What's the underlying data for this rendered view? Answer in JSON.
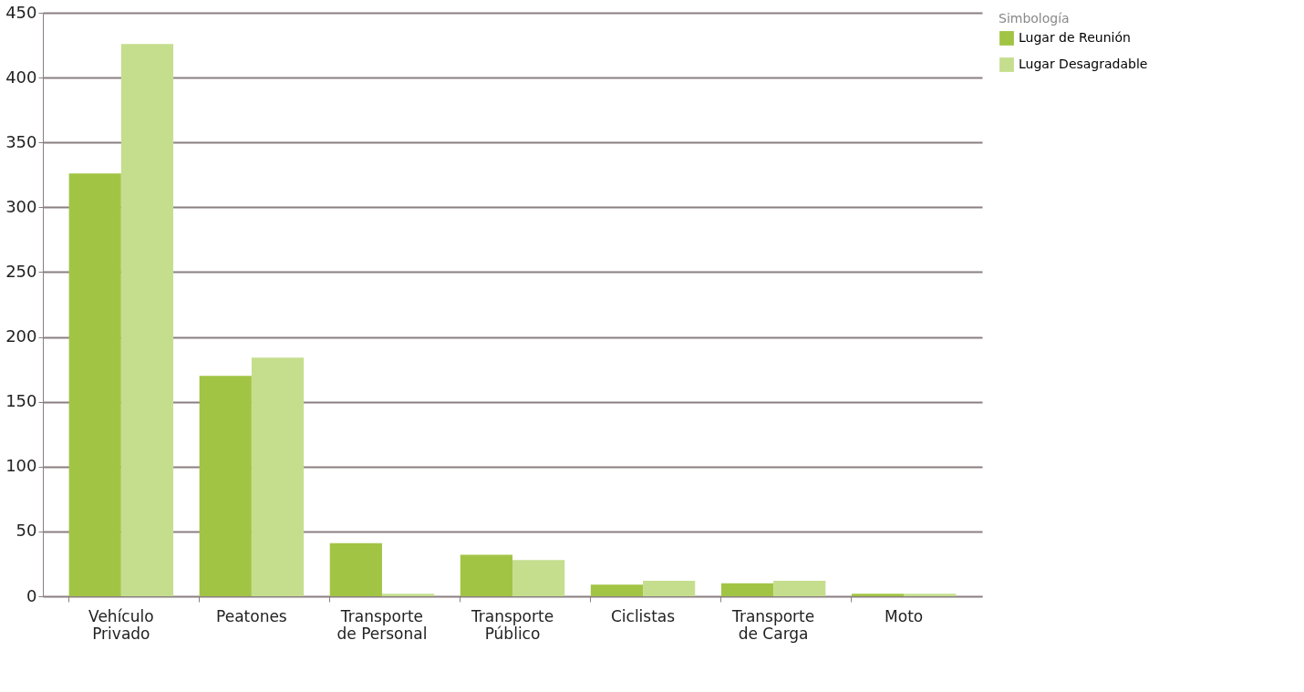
{
  "chart_data": {
    "type": "bar",
    "legend_title": "Simbología",
    "categories": [
      "Vehículo Privado",
      "Peatones",
      "Transporte de Personal",
      "Transporte Público",
      "Ciclistas",
      "Transporte de Carga",
      "Moto"
    ],
    "series": [
      {
        "name": "Lugar de Reunión",
        "color": "#a2c445",
        "values": [
          326,
          170,
          41,
          32,
          9,
          10,
          2
        ]
      },
      {
        "name": "Lugar Desagradable",
        "color": "#c5de8e",
        "values": [
          426,
          184,
          2,
          28,
          12,
          12,
          2
        ]
      }
    ],
    "ylim": [
      0,
      450
    ],
    "yticks": [
      0,
      50,
      100,
      150,
      200,
      250,
      300,
      350,
      400,
      450
    ],
    "grid": "y",
    "legend": "right"
  }
}
